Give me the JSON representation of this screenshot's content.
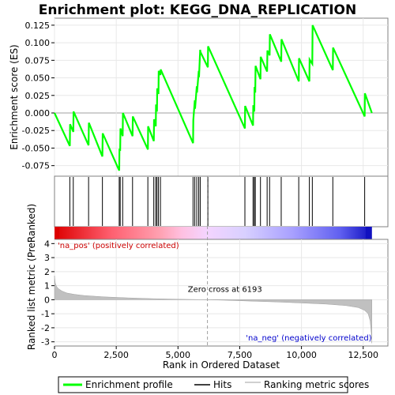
{
  "chart_data": {
    "type": "line",
    "title": "Enrichment plot: KEGG_DNA_REPLICATION",
    "top_panel": {
      "ylabel": "Enrichment score (ES)",
      "ylim": [
        -0.09,
        0.135
      ],
      "yticks": [
        -0.075,
        -0.05,
        -0.025,
        0.0,
        0.025,
        0.05,
        0.075,
        0.1,
        0.125
      ],
      "ytick_labels": [
        "-0.075",
        "-0.050",
        "-0.025",
        "0.000",
        "0.025",
        "0.050",
        "0.075",
        "0.100",
        "0.125"
      ],
      "series": [
        {
          "name": "Enrichment profile",
          "color": "#00ff00",
          "x": [
            0,
            620,
            630,
            760,
            770,
            1380,
            1390,
            1940,
            1950,
            2620,
            2630,
            2660,
            2670,
            2760,
            2770,
            3160,
            3170,
            3780,
            3790,
            4020,
            4030,
            4100,
            4110,
            4150,
            4160,
            4210,
            4220,
            4290,
            4300,
            5610,
            5620,
            5680,
            5690,
            5760,
            5770,
            5840,
            5850,
            5900,
            5910,
            6210,
            6220,
            7710,
            7720,
            8040,
            8050,
            8090,
            8100,
            8130,
            8140,
            8340,
            8350,
            8610,
            8620,
            8710,
            8720,
            9180,
            9190,
            9890,
            9900,
            10320,
            10330,
            10440,
            10450,
            11270,
            11280,
            12560,
            12570,
            12850
          ],
          "y": [
            0.0,
            -0.047,
            -0.016,
            -0.027,
            0.002,
            -0.046,
            -0.014,
            -0.062,
            -0.029,
            -0.082,
            -0.051,
            -0.054,
            -0.022,
            -0.033,
            0.0,
            -0.033,
            -0.005,
            -0.052,
            -0.019,
            -0.04,
            -0.009,
            -0.019,
            0.012,
            0.002,
            0.035,
            0.027,
            0.06,
            0.054,
            0.062,
            -0.043,
            -0.01,
            0.018,
            0.006,
            0.038,
            0.029,
            0.06,
            0.051,
            0.09,
            0.087,
            0.065,
            0.095,
            -0.022,
            0.01,
            -0.018,
            0.011,
            0.002,
            0.037,
            0.029,
            0.067,
            0.048,
            0.08,
            0.059,
            0.089,
            0.082,
            0.112,
            0.073,
            0.105,
            0.045,
            0.078,
            0.045,
            0.076,
            0.07,
            0.125,
            0.061,
            0.093,
            -0.005,
            0.028,
            0.0
          ]
        }
      ],
      "hits_label": "Hits",
      "hits": [
        620,
        760,
        1380,
        1940,
        2620,
        2660,
        2760,
        3160,
        3780,
        4020,
        4100,
        4150,
        4210,
        4290,
        5610,
        5680,
        5760,
        5840,
        5900,
        6210,
        7710,
        8040,
        8090,
        8130,
        8340,
        8610,
        8710,
        9180,
        9890,
        10320,
        10440,
        11270,
        12560
      ]
    },
    "bottom_panel": {
      "ylabel": "Ranked list metric (PreRanked)",
      "ylim": [
        -3.3,
        4.3
      ],
      "yticks": [
        -3,
        -2,
        -1,
        0,
        1,
        2,
        3,
        4
      ],
      "ytick_labels": [
        "-3",
        "-2",
        "-1",
        "0",
        "1",
        "2",
        "3",
        "4"
      ],
      "series_name": "Ranking metric scores",
      "metric_profile": {
        "x": [
          0,
          30,
          80,
          150,
          300,
          500,
          800,
          1200,
          2000,
          3000,
          4000,
          5000,
          6193,
          7000,
          8000,
          9000,
          10000,
          11000,
          11800,
          12300,
          12550,
          12700,
          12780,
          12830,
          12850
        ],
        "y": [
          1.7,
          1.2,
          0.95,
          0.8,
          0.62,
          0.48,
          0.38,
          0.3,
          0.2,
          0.13,
          0.07,
          0.03,
          0.0,
          -0.04,
          -0.1,
          -0.16,
          -0.23,
          -0.31,
          -0.42,
          -0.56,
          -0.75,
          -1.0,
          -1.5,
          -2.4,
          -3.1
        ]
      },
      "zero_cross_label": "Zero cross at 6193",
      "zero_cross": 6193,
      "pos_label": "'na_pos' (positively correlated)",
      "neg_label": "'na_neg' (negatively correlated)",
      "pos_color": "#cc0000",
      "neg_color": "#0000cc"
    },
    "xlabel": "Rank in Ordered Dataset",
    "xlim": [
      0,
      13500
    ],
    "xticks": [
      0,
      2500,
      5000,
      7500,
      10000,
      12500
    ],
    "xtick_labels": [
      "0",
      "2,500",
      "5,000",
      "7,500",
      "10,000",
      "12,500"
    ],
    "legend": {
      "placement": "bottom",
      "entries": [
        {
          "label": "Enrichment profile",
          "color": "#00ff00"
        },
        {
          "label": "Hits",
          "color": "#000000"
        },
        {
          "label": "Ranking metric scores",
          "color": "#c0c0c0"
        }
      ]
    }
  }
}
